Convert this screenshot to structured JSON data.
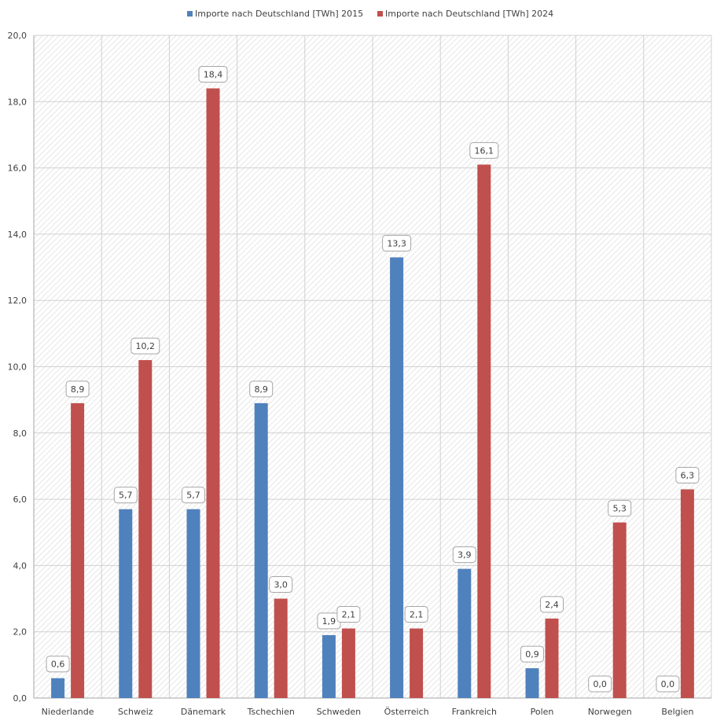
{
  "chart_data": {
    "type": "bar",
    "title": "",
    "xlabel": "",
    "ylabel": "",
    "categories": [
      "Niederlande",
      "Schweiz",
      "Dänemark",
      "Tschechien",
      "Schweden",
      "Österreich",
      "Frankreich",
      "Polen",
      "Norwegen",
      "Belgien"
    ],
    "series": [
      {
        "name": "Importe nach Deutschland [TWh] 2015",
        "color": "#4F81BD",
        "values": [
          0.6,
          5.7,
          5.7,
          8.9,
          1.9,
          13.3,
          3.9,
          0.9,
          0.0,
          0.0
        ],
        "labels": [
          "0,6",
          "5,7",
          "5,7",
          "8,9",
          "1,9",
          "13,3",
          "3,9",
          "0,9",
          "0,0",
          "0,0"
        ]
      },
      {
        "name": "Importe nach Deutschland [TWh] 2024",
        "color": "#C0504D",
        "values": [
          8.9,
          10.2,
          18.4,
          3.0,
          2.1,
          2.1,
          16.1,
          2.4,
          5.3,
          6.3
        ],
        "labels": [
          "8,9",
          "10,2",
          "18,4",
          "3,0",
          "2,1",
          "2,1",
          "16,1",
          "2,4",
          "5,3",
          "6,3"
        ]
      }
    ],
    "ylim": [
      0,
      20
    ],
    "yticks": [
      0,
      2,
      4,
      6,
      8,
      10,
      12,
      14,
      16,
      18,
      20
    ],
    "ytick_labels": [
      "0,0",
      "2,0",
      "4,0",
      "6,0",
      "8,0",
      "10,0",
      "12,0",
      "14,0",
      "16,0",
      "18,0",
      "20,0"
    ],
    "grid": true,
    "legend_position": "top-center"
  }
}
